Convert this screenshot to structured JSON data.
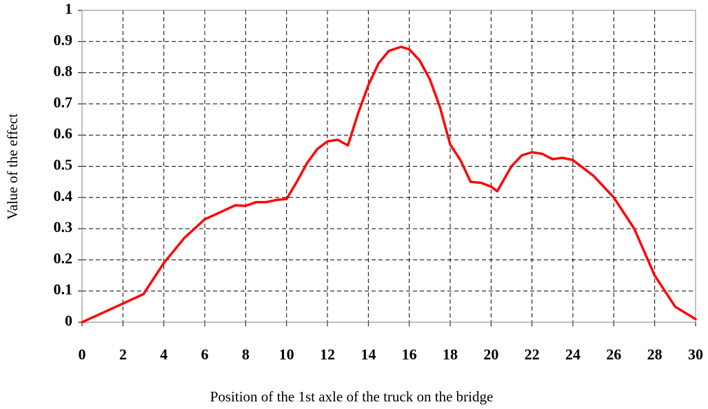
{
  "chart_data": {
    "type": "line",
    "xlabel": "Position of the 1st axle of the truck on the bridge",
    "ylabel": "Value of the effect",
    "x": [
      0,
      1,
      2,
      3,
      4,
      5,
      6,
      7,
      7.5,
      8,
      8.5,
      9,
      9.5,
      10,
      10.5,
      11,
      11.5,
      12,
      12.5,
      13,
      13.5,
      14,
      14.5,
      15,
      15.6,
      16,
      16.5,
      17,
      17.5,
      18,
      18.5,
      19,
      19.5,
      20,
      20.3,
      21,
      21.5,
      22,
      22.5,
      23,
      23.5,
      24,
      25,
      26,
      27,
      28,
      29,
      30
    ],
    "values": [
      0.0,
      0.03,
      0.06,
      0.09,
      0.19,
      0.27,
      0.33,
      0.36,
      0.375,
      0.373,
      0.385,
      0.385,
      0.392,
      0.395,
      0.45,
      0.51,
      0.555,
      0.58,
      0.585,
      0.567,
      0.67,
      0.76,
      0.83,
      0.87,
      0.883,
      0.875,
      0.84,
      0.78,
      0.69,
      0.57,
      0.52,
      0.45,
      0.447,
      0.435,
      0.42,
      0.5,
      0.535,
      0.545,
      0.54,
      0.523,
      0.527,
      0.52,
      0.47,
      0.4,
      0.3,
      0.15,
      0.05,
      0.01
    ],
    "color": "#ff0000",
    "xlim": [
      0,
      30
    ],
    "xticks": [
      0,
      2,
      4,
      6,
      8,
      10,
      12,
      14,
      16,
      18,
      20,
      22,
      24,
      26,
      28,
      30
    ],
    "ylim": [
      0,
      1
    ],
    "yticks": [
      0,
      0.1,
      0.2,
      0.3,
      0.4,
      0.5,
      0.6,
      0.7,
      0.8,
      0.9,
      1
    ],
    "grid": true
  }
}
